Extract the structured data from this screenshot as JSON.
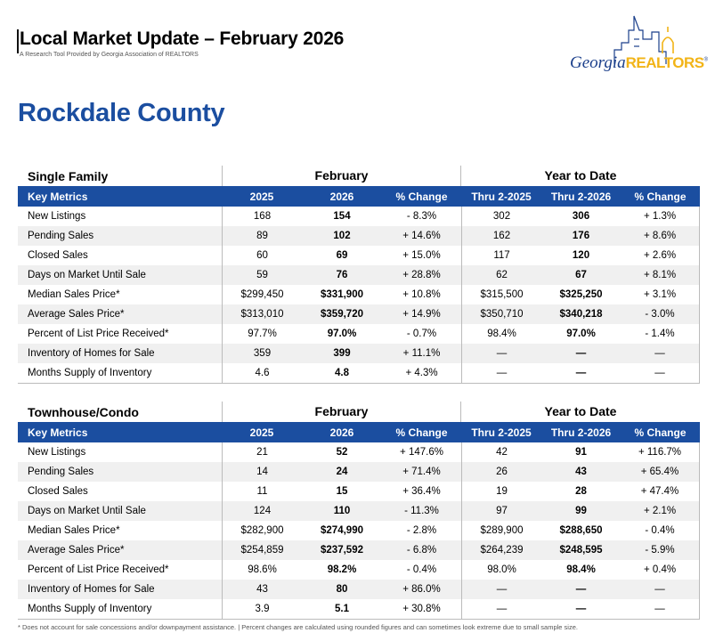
{
  "header": {
    "title": "Local Market Update – February 2026",
    "subtitle": "A Research Tool Provided by Georgia Association of REALTORS"
  },
  "logo": {
    "georgia": "Georgia",
    "realtors": "REALTORS",
    "reg": "®"
  },
  "county": "Rockdale County",
  "columns": {
    "key_metrics": "Key Metrics",
    "feb_2025": "2025",
    "feb_2026": "2026",
    "pct": "% Change",
    "ytd_2025": "Thru 2-2025",
    "ytd_2026": "Thru 2-2026",
    "group_feb": "February",
    "group_ytd": "Year to Date"
  },
  "single_family": {
    "title": "Single Family",
    "rows": [
      [
        "New Listings",
        "168",
        "154",
        "- 8.3%",
        "302",
        "306",
        "+ 1.3%"
      ],
      [
        "Pending Sales",
        "89",
        "102",
        "+ 14.6%",
        "162",
        "176",
        "+ 8.6%"
      ],
      [
        "Closed Sales",
        "60",
        "69",
        "+ 15.0%",
        "117",
        "120",
        "+ 2.6%"
      ],
      [
        "Days on Market Until Sale",
        "59",
        "76",
        "+ 28.8%",
        "62",
        "67",
        "+ 8.1%"
      ],
      [
        "Median Sales Price*",
        "$299,450",
        "$331,900",
        "+ 10.8%",
        "$315,500",
        "$325,250",
        "+ 3.1%"
      ],
      [
        "Average Sales Price*",
        "$313,010",
        "$359,720",
        "+ 14.9%",
        "$350,710",
        "$340,218",
        "- 3.0%"
      ],
      [
        "Percent of List Price Received*",
        "97.7%",
        "97.0%",
        "- 0.7%",
        "98.4%",
        "97.0%",
        "- 1.4%"
      ],
      [
        "Inventory of Homes for Sale",
        "359",
        "399",
        "+ 11.1%",
        "—",
        "—",
        "—"
      ],
      [
        "Months Supply of Inventory",
        "4.6",
        "4.8",
        "+ 4.3%",
        "—",
        "—",
        "—"
      ]
    ]
  },
  "townhouse_condo": {
    "title": "Townhouse/Condo",
    "rows": [
      [
        "New Listings",
        "21",
        "52",
        "+ 147.6%",
        "42",
        "91",
        "+ 116.7%"
      ],
      [
        "Pending Sales",
        "14",
        "24",
        "+ 71.4%",
        "26",
        "43",
        "+ 65.4%"
      ],
      [
        "Closed Sales",
        "11",
        "15",
        "+ 36.4%",
        "19",
        "28",
        "+ 47.4%"
      ],
      [
        "Days on Market Until Sale",
        "124",
        "110",
        "- 11.3%",
        "97",
        "99",
        "+ 2.1%"
      ],
      [
        "Median Sales Price*",
        "$282,900",
        "$274,990",
        "- 2.8%",
        "$289,900",
        "$288,650",
        "- 0.4%"
      ],
      [
        "Average Sales Price*",
        "$254,859",
        "$237,592",
        "- 6.8%",
        "$264,239",
        "$248,595",
        "- 5.9%"
      ],
      [
        "Percent of List Price Received*",
        "98.6%",
        "98.2%",
        "- 0.4%",
        "98.0%",
        "98.4%",
        "+ 0.4%"
      ],
      [
        "Inventory of Homes for Sale",
        "43",
        "80",
        "+ 86.0%",
        "—",
        "—",
        "—"
      ],
      [
        "Months Supply of Inventory",
        "3.9",
        "5.1",
        "+ 30.8%",
        "—",
        "—",
        "—"
      ]
    ]
  },
  "footnote": "* Does not account for sale concessions and/or downpayment assistance. | Percent changes are calculated using rounded figures and can sometimes look extreme due to small sample size.",
  "colors": {
    "accent": "#1b4ea0",
    "logo_gold": "#f2b417",
    "logo_blue": "#1b3f8b"
  }
}
